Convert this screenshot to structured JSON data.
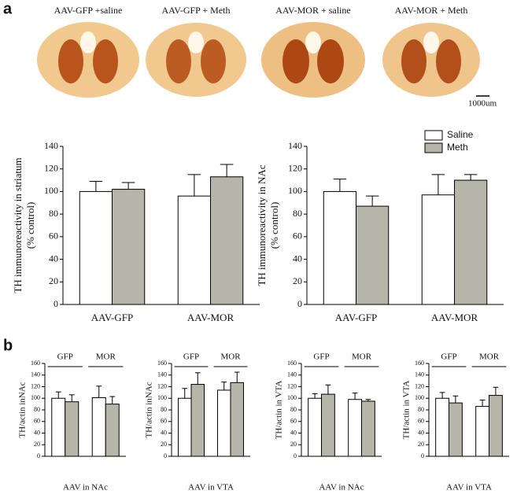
{
  "figure": {
    "panel_a": "a",
    "panel_b": "b",
    "image_labels": [
      "AAV-GFP +saline",
      "AAV-GFP + Meth",
      "AAV-MOR + saline",
      "AAV-MOR + Meth"
    ],
    "scale_bar": "1000um"
  },
  "chart_data": [
    {
      "type": "bar",
      "ylabel": [
        "TH immunoreactivity in striatum",
        "(% control)"
      ],
      "categories": [
        "AAV-GFP",
        "AAV-MOR"
      ],
      "ylim": [
        0,
        140
      ],
      "yticks": [
        0,
        20,
        40,
        60,
        80,
        100,
        120,
        140
      ],
      "series": [
        {
          "color": "#ffffff",
          "values": [
            100,
            96
          ],
          "errors": [
            9,
            19
          ]
        },
        {
          "color": "#b5b5a9",
          "values": [
            102,
            113
          ],
          "errors": [
            6,
            11
          ]
        }
      ]
    },
    {
      "type": "bar",
      "ylabel": [
        "TH immunoreactivity in NAc",
        "(% control)"
      ],
      "categories": [
        "AAV-GFP",
        "AAV-MOR"
      ],
      "ylim": [
        0,
        140
      ],
      "yticks": [
        0,
        20,
        40,
        60,
        80,
        100,
        120,
        140
      ],
      "legend": "upper right",
      "series": [
        {
          "name": "Saline",
          "color": "#ffffff",
          "values": [
            100,
            97
          ],
          "errors": [
            11,
            18
          ]
        },
        {
          "name": "Meth",
          "color": "#b5b5a9",
          "values": [
            87,
            110
          ],
          "errors": [
            9,
            5
          ]
        }
      ]
    },
    {
      "type": "bar",
      "ylabel": [
        "TH/actin inNAc"
      ],
      "xlabel": "AAV in NAc",
      "categories": [
        "GFP",
        "MOR"
      ],
      "ylim": [
        0,
        160
      ],
      "yticks": [
        0,
        20,
        40,
        60,
        80,
        100,
        120,
        140,
        160
      ],
      "series": [
        {
          "color": "#ffffff",
          "values": [
            100,
            101
          ],
          "errors": [
            11,
            20
          ]
        },
        {
          "color": "#b5b5a9",
          "values": [
            94,
            90
          ],
          "errors": [
            12,
            13
          ]
        }
      ]
    },
    {
      "type": "bar",
      "ylabel": [
        "TH/actin inNAc"
      ],
      "xlabel": "AAV in VTA",
      "categories": [
        "GFP",
        "MOR"
      ],
      "ylim": [
        0,
        160
      ],
      "yticks": [
        0,
        20,
        40,
        60,
        80,
        100,
        120,
        140,
        160
      ],
      "series": [
        {
          "color": "#ffffff",
          "values": [
            100,
            114
          ],
          "errors": [
            17,
            14
          ]
        },
        {
          "color": "#b5b5a9",
          "values": [
            124,
            127
          ],
          "errors": [
            20,
            18
          ]
        }
      ]
    },
    {
      "type": "bar",
      "ylabel": [
        "TH/actin in VTA"
      ],
      "xlabel": "AAV in NAc",
      "categories": [
        "GFP",
        "MOR"
      ],
      "ylim": [
        0,
        160
      ],
      "yticks": [
        0,
        20,
        40,
        60,
        80,
        100,
        120,
        140,
        160
      ],
      "series": [
        {
          "color": "#ffffff",
          "values": [
            100,
            98
          ],
          "errors": [
            8,
            11
          ]
        },
        {
          "color": "#b5b5a9",
          "values": [
            107,
            95
          ],
          "errors": [
            16,
            3
          ]
        }
      ]
    },
    {
      "type": "bar",
      "ylabel": [
        "TH/actin in VTA"
      ],
      "xlabel": "AAV in VTA",
      "categories": [
        "GFP",
        "MOR"
      ],
      "ylim": [
        0,
        160
      ],
      "yticks": [
        0,
        20,
        40,
        60,
        80,
        100,
        120,
        140,
        160
      ],
      "series": [
        {
          "color": "#ffffff",
          "values": [
            100,
            86
          ],
          "errors": [
            10,
            11
          ]
        },
        {
          "color": "#b5b5a9",
          "values": [
            92,
            105
          ],
          "errors": [
            12,
            14
          ]
        }
      ]
    }
  ]
}
